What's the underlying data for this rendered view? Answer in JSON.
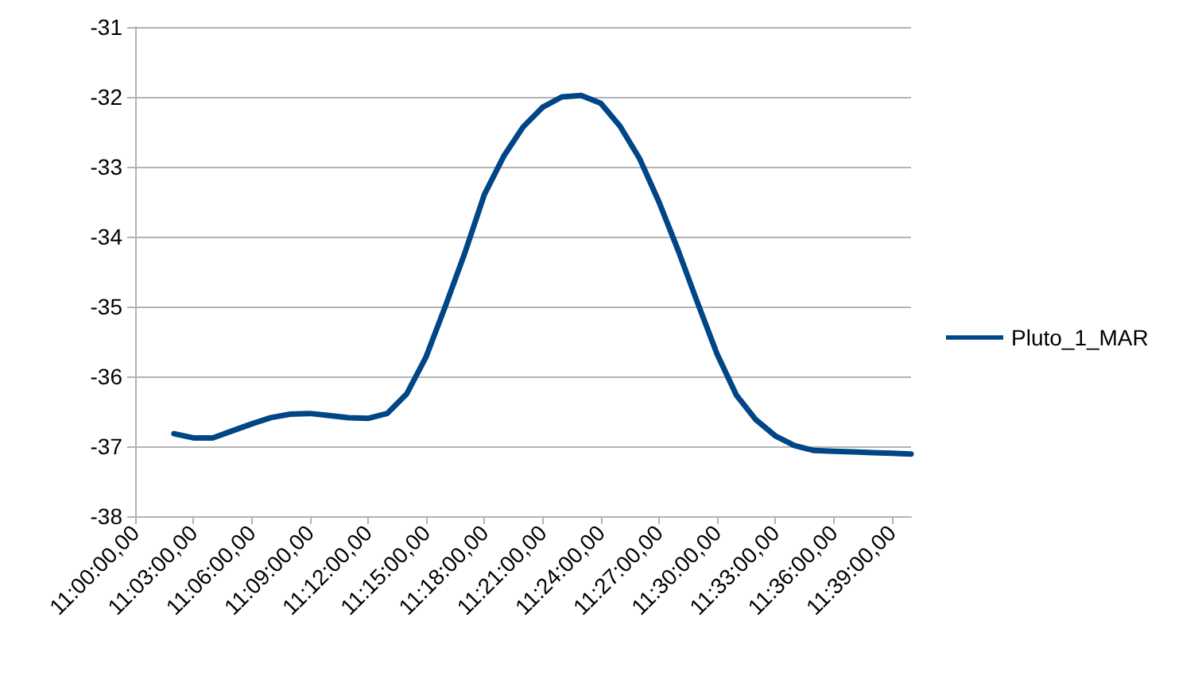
{
  "chart_data": {
    "type": "line",
    "categories": [
      "11:00:00,00",
      null,
      null,
      "11:03:00,00",
      null,
      null,
      "11:06:00,00",
      null,
      null,
      "11:09:00,00",
      null,
      null,
      "11:12:00,00",
      null,
      null,
      "11:15:00,00",
      null,
      null,
      "11:18:00,00",
      null,
      null,
      "11:21:00,00",
      null,
      null,
      "11:24:00,00",
      null,
      null,
      "11:27:00,00",
      null,
      null,
      "11:30:00,00",
      null,
      null,
      "11:33:00,00",
      null,
      null,
      "11:36:00,00",
      null,
      null,
      "11:39:00,00",
      null
    ],
    "series": [
      {
        "name": "Pluto_1_MAR",
        "color": "#004586",
        "values": [
          null,
          null,
          -36.82,
          -36.88,
          -36.88,
          -36.78,
          -36.68,
          -36.59,
          -36.54,
          -36.53,
          -36.56,
          -36.59,
          -36.6,
          -36.53,
          -36.25,
          -35.72,
          -34.99,
          -34.23,
          -33.4,
          -32.85,
          -32.43,
          -32.15,
          -32.0,
          -31.98,
          -32.09,
          -32.42,
          -32.88,
          -33.5,
          -34.2,
          -34.95,
          -35.68,
          -36.27,
          -36.62,
          -36.85,
          -36.99,
          -37.06,
          -37.07,
          -37.08,
          -37.09,
          -37.1,
          -37.11
        ]
      }
    ],
    "ylim": [
      -38,
      -31
    ],
    "yticks": [
      -38,
      -37,
      -36,
      -35,
      -34,
      -33,
      -32,
      -31
    ],
    "grid": "y",
    "legend": "right",
    "marker": "none",
    "line_style": "solid"
  }
}
